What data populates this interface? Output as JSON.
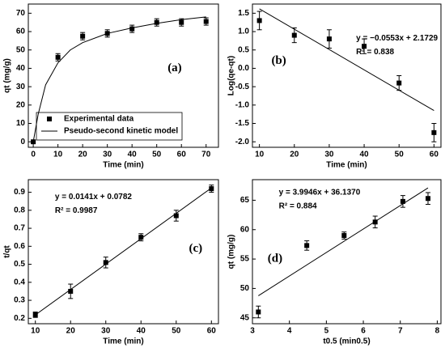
{
  "chart_data": [
    {
      "type": "scatter",
      "xlabel": "Time (min)",
      "ylabel": "qt (mg/g)",
      "label": "(a)",
      "xlim": [
        -2,
        75
      ],
      "xticks": [
        0,
        10,
        20,
        30,
        40,
        50,
        60,
        70
      ],
      "ylim": [
        -3,
        75
      ],
      "yticks": [
        0,
        10,
        20,
        30,
        40,
        50,
        60,
        70
      ],
      "legend": "lower left",
      "series": [
        {
          "name": "Experimental data",
          "mode": "markers",
          "color": "#000000",
          "x": [
            0,
            10,
            20,
            30,
            40,
            50,
            60,
            70
          ],
          "values": [
            0,
            46,
            57.5,
            59,
            61.5,
            65,
            65,
            65.5
          ],
          "errors": [
            0.5,
            2,
            2,
            2,
            2,
            2,
            2,
            2
          ]
        },
        {
          "name": "Pseudo-second kinetic model",
          "mode": "line",
          "color": "#000000",
          "x": [
            0,
            2,
            5,
            10,
            15,
            20,
            30,
            40,
            50,
            60,
            70
          ],
          "values": [
            0,
            15,
            31,
            43,
            50,
            54,
            59,
            62,
            64.5,
            66.5,
            68
          ]
        }
      ]
    },
    {
      "type": "scatter",
      "xlabel": "Time (min)",
      "ylabel": "Log(qe-qt)",
      "label": "(b)",
      "annotations": [
        "y = −0.0553x + 2.1729",
        "R² = 0.838"
      ],
      "xlim": [
        8,
        62
      ],
      "xticks": [
        10,
        20,
        30,
        40,
        50,
        60
      ],
      "ylim": [
        -2.15,
        1.75
      ],
      "yticks": [
        {
          "value": -2,
          "label": "-2.0"
        },
        -1.5,
        {
          "value": -1,
          "label": "-1.0"
        },
        -0.5,
        {
          "value": 0,
          "label": "0.0"
        },
        0.5,
        {
          "value": 1,
          "label": "1.0"
        },
        1.5
      ],
      "series": [
        {
          "mode": "markers",
          "color": "#000000",
          "x": [
            10,
            20,
            30,
            40,
            50,
            60
          ],
          "values": [
            1.3,
            0.9,
            0.8,
            0.6,
            -0.4,
            -1.75
          ],
          "errors": [
            0.25,
            0.2,
            0.25,
            0.2,
            0.2,
            0.25
          ]
        },
        {
          "mode": "line",
          "color": "#000000",
          "x": [
            10,
            60
          ],
          "values": [
            1.62,
            -1.15
          ]
        }
      ]
    },
    {
      "type": "scatter",
      "xlabel": "Time (min)",
      "ylabel": "t/qt",
      "label": "(c)",
      "annotations": [
        "y = 0.0141x + 0.0782",
        "R² = 0.9987"
      ],
      "xlim": [
        8,
        62
      ],
      "xticks": [
        10,
        20,
        30,
        40,
        50,
        60
      ],
      "ylim": [
        0.17,
        0.97
      ],
      "yticks": [
        0.2,
        0.3,
        0.4,
        0.5,
        0.6,
        0.7,
        0.8,
        0.9
      ],
      "series": [
        {
          "mode": "markers",
          "color": "#000000",
          "x": [
            10,
            20,
            30,
            40,
            50,
            60
          ],
          "values": [
            0.22,
            0.35,
            0.51,
            0.65,
            0.77,
            0.92
          ],
          "errors": [
            0.015,
            0.04,
            0.03,
            0.02,
            0.03,
            0.02
          ]
        },
        {
          "mode": "line",
          "color": "#000000",
          "x": [
            10,
            60
          ],
          "values": [
            0.219,
            0.924
          ]
        }
      ]
    },
    {
      "type": "scatter",
      "xlabel": "t0.5 (min0.5)",
      "ylabel": "qt (mg/g)",
      "label": "(d)",
      "annotations": [
        "y = 3.9946x + 36.1370",
        "R² = 0.884"
      ],
      "xlim": [
        3,
        8.1
      ],
      "xticks": [
        3,
        4,
        5,
        6,
        7,
        8
      ],
      "ylim": [
        44,
        68.5
      ],
      "yticks": [
        45,
        50,
        55,
        60,
        65
      ],
      "series": [
        {
          "mode": "markers",
          "color": "#000000",
          "x": [
            3.16,
            4.47,
            5.48,
            6.32,
            7.07,
            7.75
          ],
          "values": [
            46,
            57.3,
            59,
            61.3,
            64.8,
            65.3
          ],
          "errors": [
            1,
            0.8,
            0.6,
            1,
            1,
            1
          ]
        },
        {
          "mode": "line",
          "color": "#000000",
          "x": [
            3.16,
            7.75
          ],
          "values": [
            48.76,
            67.1
          ]
        }
      ]
    }
  ]
}
